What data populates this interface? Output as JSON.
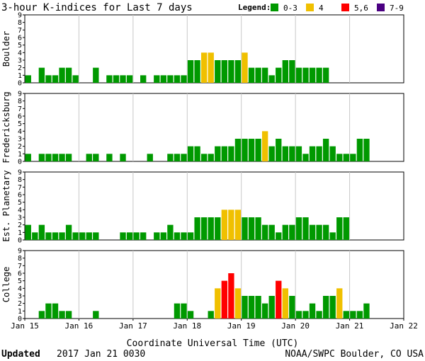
{
  "title": "3-hour K-indices for Last 7 days",
  "legend": {
    "label": "Legend:",
    "entries": [
      {
        "label": "0-3",
        "color": "#009900"
      },
      {
        "label": "4",
        "color": "#f0c000"
      },
      {
        "label": "5,6",
        "color": "#ff0000"
      },
      {
        "label": "7-9",
        "color": "#4b0082"
      }
    ]
  },
  "footer": {
    "updated_label": "Updated",
    "updated_value": "2017 Jan 21 0030",
    "credit": "NOAA/SWPC Boulder, CO USA"
  },
  "chart_data": {
    "type": "bar",
    "title": "3-hour K-indices for Last 7 days",
    "xlabel": "Coordinate Universal Time (UTC)",
    "x_ticks": [
      "Jan 15",
      "Jan 16",
      "Jan 17",
      "Jan 18",
      "Jan 19",
      "Jan 20",
      "Jan 21",
      "Jan 22"
    ],
    "ylim": [
      0,
      9
    ],
    "y_ticks": [
      "0",
      "1",
      "2",
      "3",
      "4",
      "5",
      "6",
      "7",
      "8",
      "9"
    ],
    "bins_per_day": 8,
    "series": [
      {
        "name": "Boulder",
        "values": [
          1,
          0,
          2,
          1,
          1,
          2,
          2,
          1,
          0,
          0,
          2,
          0,
          1,
          1,
          1,
          1,
          0,
          1,
          0,
          1,
          1,
          1,
          1,
          1,
          3,
          3,
          4,
          4,
          3,
          3,
          3,
          3,
          4,
          2,
          2,
          2,
          1,
          2,
          3,
          3,
          2,
          2,
          2,
          2,
          2,
          null,
          null,
          null,
          null,
          null,
          null,
          null,
          null,
          null,
          null,
          null
        ]
      },
      {
        "name": "Fredericksburg",
        "values": [
          1,
          0,
          1,
          1,
          1,
          1,
          1,
          0,
          0,
          1,
          1,
          0,
          1,
          0,
          1,
          0,
          0,
          0,
          1,
          0,
          0,
          1,
          1,
          1,
          2,
          2,
          1,
          1,
          2,
          2,
          2,
          3,
          3,
          3,
          3,
          4,
          2,
          3,
          2,
          2,
          2,
          1,
          2,
          2,
          3,
          2,
          1,
          1,
          1,
          3,
          3,
          null,
          null,
          null,
          null,
          null
        ]
      },
      {
        "name": "Est. Planetary",
        "values": [
          2,
          1,
          2,
          1,
          1,
          1,
          2,
          1,
          1,
          1,
          1,
          0,
          0,
          0,
          1,
          1,
          1,
          1,
          0,
          1,
          1,
          2,
          1,
          1,
          1,
          3,
          3,
          3,
          3,
          4,
          4,
          4,
          3,
          3,
          3,
          2,
          2,
          1,
          2,
          2,
          3,
          3,
          2,
          2,
          2,
          1,
          3,
          3,
          null,
          null,
          null,
          null,
          null,
          null,
          null,
          null
        ]
      },
      {
        "name": "College",
        "values": [
          0,
          0,
          1,
          2,
          2,
          1,
          1,
          0,
          0,
          0,
          1,
          0,
          0,
          0,
          0,
          0,
          0,
          0,
          0,
          0,
          0,
          0,
          2,
          2,
          1,
          0,
          0,
          1,
          4,
          5,
          6,
          4,
          3,
          3,
          3,
          2,
          3,
          5,
          4,
          3,
          1,
          1,
          2,
          1,
          3,
          3,
          4,
          1,
          1,
          1,
          2,
          null,
          null,
          null,
          null,
          null
        ]
      }
    ],
    "color_rule": [
      {
        "range": "0-3",
        "color": "#009900"
      },
      {
        "range": "4",
        "color": "#f0c000"
      },
      {
        "range": "5,6",
        "color": "#ff0000"
      },
      {
        "range": "7-9",
        "color": "#4b0082"
      }
    ],
    "grid": true
  }
}
